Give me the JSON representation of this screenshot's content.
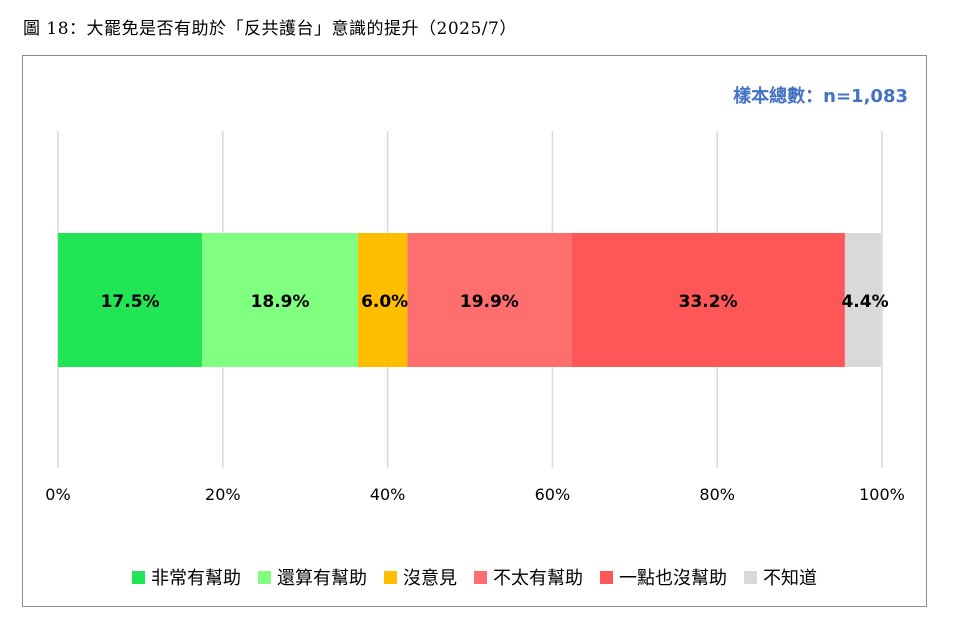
{
  "caption": "圖 18：大罷免是否有助於「反共護台」意識的提升（2025/7）",
  "sample_note": "樣本總數：n=1,083",
  "chart_data": {
    "type": "bar",
    "orientation": "horizontal-stacked-100",
    "xlim": [
      0,
      100
    ],
    "xticks": [
      "0%",
      "20%",
      "40%",
      "60%",
      "80%",
      "100%"
    ],
    "grid": true,
    "legend_position": "bottom",
    "series": [
      {
        "name": "非常有幫助",
        "value": 17.5,
        "label": "17.5%",
        "color": "#22e556"
      },
      {
        "name": "還算有幫助",
        "value": 18.9,
        "label": "18.9%",
        "color": "#80ff80"
      },
      {
        "name": "沒意見",
        "value": 6.0,
        "label": "6.0%",
        "color": "#ffbf00"
      },
      {
        "name": "不太有幫助",
        "value": 19.9,
        "label": "19.9%",
        "color": "#ff6e6e"
      },
      {
        "name": "一點也沒幫助",
        "value": 33.2,
        "label": "33.2%",
        "color": "#ff5757"
      },
      {
        "name": "不知道",
        "value": 4.4,
        "label": "4.4%",
        "color": "#d9d9d9"
      }
    ]
  }
}
